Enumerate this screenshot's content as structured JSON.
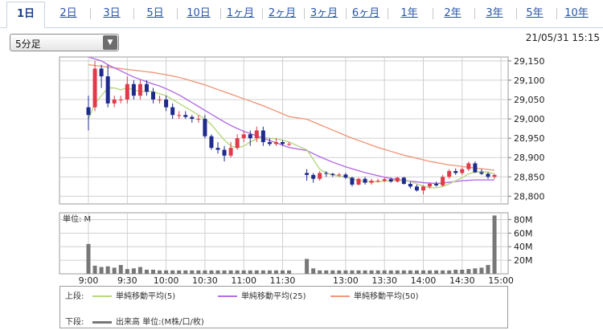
{
  "tabs": [
    {
      "label": "1日",
      "active": true
    },
    {
      "label": "2日"
    },
    {
      "label": "3日"
    },
    {
      "label": "5日"
    },
    {
      "label": "10日"
    },
    {
      "label": "1ヶ月"
    },
    {
      "label": "2ヶ月"
    },
    {
      "label": "3ヶ月"
    },
    {
      "label": "6ヶ月"
    },
    {
      "label": "1年"
    },
    {
      "label": "2年"
    },
    {
      "label": "3年"
    },
    {
      "label": "5年"
    },
    {
      "label": "10年"
    }
  ],
  "interval_select": {
    "value": "5分足"
  },
  "datetime": "21/05/31 15:15",
  "colors": {
    "up": "#e03a4a",
    "down": "#1e2a8c",
    "ma5": "#b8d77e",
    "ma25": "#b46ee6",
    "ma50": "#ef9a7c",
    "volume": "#777777",
    "grid": "#d0d0d0"
  },
  "chart_data": [
    {
      "type": "candlestick",
      "x_tick_labels": [
        "9:00",
        "9:30",
        "10:00",
        "10:30",
        "11:00",
        "11:30",
        "13:00",
        "13:30",
        "14:00",
        "14:30",
        "15:00"
      ],
      "y_tick_labels": [
        "29,150",
        "29,100",
        "29,050",
        "29,000",
        "28,950",
        "28,900",
        "28,850",
        "28,800"
      ],
      "ylim": [
        28780,
        29160
      ],
      "grid": true,
      "bars_per_hour": 12,
      "session_gap_after_bar": 31,
      "ohlc": [
        [
          29030,
          29060,
          28970,
          29010
        ],
        [
          29030,
          29150,
          29020,
          29130
        ],
        [
          29130,
          29140,
          29080,
          29110
        ],
        [
          29110,
          29140,
          29030,
          29040
        ],
        [
          29040,
          29060,
          29030,
          29050
        ],
        [
          29050,
          29060,
          29040,
          29050
        ],
        [
          29050,
          29110,
          29040,
          29090
        ],
        [
          29090,
          29100,
          29050,
          29060
        ],
        [
          29060,
          29100,
          29050,
          29090
        ],
        [
          29090,
          29100,
          29060,
          29070
        ],
        [
          29070,
          29080,
          29040,
          29050
        ],
        [
          29050,
          29060,
          29040,
          29050
        ],
        [
          29050,
          29060,
          29020,
          29030
        ],
        [
          29030,
          29040,
          29000,
          29010
        ],
        [
          29010,
          29020,
          29000,
          29010
        ],
        [
          29010,
          29020,
          29000,
          29005
        ],
        [
          29005,
          29010,
          28990,
          29000
        ],
        [
          29000,
          29010,
          28990,
          29000
        ],
        [
          29000,
          29010,
          28950,
          28955
        ],
        [
          28955,
          28960,
          28920,
          28925
        ],
        [
          28925,
          28940,
          28910,
          28920
        ],
        [
          28920,
          28930,
          28890,
          28905
        ],
        [
          28905,
          28940,
          28900,
          28925
        ],
        [
          28925,
          28960,
          28920,
          28950
        ],
        [
          28950,
          28970,
          28940,
          28960
        ],
        [
          28960,
          28970,
          28930,
          28950
        ],
        [
          28950,
          28980,
          28940,
          28970
        ],
        [
          28970,
          28980,
          28930,
          28940
        ],
        [
          28940,
          28950,
          28930,
          28935
        ],
        [
          28935,
          28950,
          28930,
          28940
        ],
        [
          28940,
          28945,
          28930,
          28935
        ],
        [
          28935,
          28940,
          28930,
          28935
        ],
        [
          28860,
          28870,
          28840,
          28855
        ],
        [
          28855,
          28860,
          28835,
          28845
        ],
        [
          28845,
          28865,
          28840,
          28860
        ],
        [
          28860,
          28865,
          28850,
          28858
        ],
        [
          28858,
          28860,
          28850,
          28855
        ],
        [
          28855,
          28860,
          28850,
          28856
        ],
        [
          28856,
          28860,
          28845,
          28848
        ],
        [
          28848,
          28850,
          28825,
          28830
        ],
        [
          28830,
          28848,
          28828,
          28845
        ],
        [
          28845,
          28850,
          28830,
          28835
        ],
        [
          28835,
          28845,
          28830,
          28840
        ],
        [
          28840,
          28845,
          28835,
          28840
        ],
        [
          28840,
          28848,
          28836,
          28844
        ],
        [
          28844,
          28848,
          28835,
          28838
        ],
        [
          28838,
          28850,
          28835,
          28848
        ],
        [
          28848,
          28850,
          28830,
          28832
        ],
        [
          28832,
          28838,
          28820,
          28825
        ],
        [
          28825,
          28830,
          28812,
          28815
        ],
        [
          28815,
          28828,
          28805,
          28825
        ],
        [
          28825,
          28835,
          28820,
          28832
        ],
        [
          28832,
          28838,
          28825,
          28828
        ],
        [
          28828,
          28855,
          28825,
          28850
        ],
        [
          28850,
          28870,
          28845,
          28865
        ],
        [
          28865,
          28872,
          28855,
          28860
        ],
        [
          28860,
          28875,
          28855,
          28870
        ],
        [
          28870,
          28890,
          28865,
          28885
        ],
        [
          28885,
          28890,
          28860,
          28862
        ],
        [
          28862,
          28870,
          28855,
          28858
        ],
        [
          28858,
          28862,
          28845,
          28850
        ],
        [
          28850,
          28858,
          28845,
          28855
        ]
      ],
      "ma5": [
        29000,
        29040,
        29060,
        29080,
        29080,
        29075,
        29080,
        29075,
        29070,
        29072,
        29070,
        29065,
        29060,
        29050,
        29040,
        29030,
        29020,
        29010,
        29000,
        28985,
        28965,
        28945,
        28930,
        28925,
        28930,
        28940,
        28948,
        28952,
        28950,
        28948,
        28945,
        28940,
        28920,
        28895,
        28870,
        28860,
        28855,
        28852,
        28850,
        28845,
        28840,
        28838,
        28837,
        28838,
        28839,
        28840,
        28841,
        28840,
        28838,
        28832,
        28826,
        28822,
        28822,
        28825,
        28832,
        28840,
        28848,
        28858,
        28862,
        28864,
        28862,
        28858
      ],
      "ma25": [
        29160,
        29155,
        29150,
        29140,
        29132,
        29124,
        29116,
        29108,
        29102,
        29096,
        29090,
        29085,
        29078,
        29070,
        29062,
        29052,
        29042,
        29032,
        29022,
        29012,
        29002,
        28992,
        28983,
        28975,
        28968,
        28962,
        28956,
        28950,
        28944,
        28938,
        28932,
        28926,
        28918,
        28910,
        28902,
        28895,
        28888,
        28882,
        28876,
        28871,
        28866,
        28861,
        28857,
        28853,
        28849,
        28846,
        28843,
        28841,
        28839,
        28837,
        28835,
        28834,
        28833,
        28834,
        28836,
        28838,
        28840,
        28841,
        28842,
        28842,
        28842,
        28842
      ],
      "ma50": [
        29140,
        29138,
        29136,
        29134,
        29132,
        29130,
        29128,
        29126,
        29124,
        29122,
        29120,
        29117,
        29114,
        29111,
        29107,
        29103,
        29098,
        29093,
        29088,
        29082,
        29076,
        29070,
        29064,
        29058,
        29052,
        29046,
        29040,
        29034,
        29027,
        29020,
        29013,
        29006,
        28999,
        28992,
        28985,
        28978,
        28971,
        28964,
        28957,
        28950,
        28944,
        28938,
        28932,
        28926,
        28921,
        28916,
        28911,
        28906,
        28902,
        28898,
        28894,
        28890,
        28887,
        28884,
        28881,
        28879,
        28877,
        28875,
        28873,
        28871,
        28869,
        28867
      ]
    },
    {
      "type": "bar",
      "title": "単位: M",
      "y_tick_labels": [
        "80M",
        "60M",
        "40M",
        "20M"
      ],
      "ylim": [
        0,
        90
      ],
      "volume_millions": [
        44,
        12,
        10,
        11,
        9,
        13,
        7,
        8,
        10,
        6,
        6,
        5,
        5,
        5,
        5,
        5,
        5,
        5,
        5,
        5,
        5,
        5,
        5,
        5,
        5,
        5,
        5,
        5,
        5,
        5,
        5,
        5,
        22,
        8,
        5,
        5,
        5,
        5,
        5,
        5,
        5,
        5,
        5,
        5,
        5,
        5,
        5,
        5,
        5,
        5,
        5,
        5,
        5,
        5,
        5,
        6,
        6,
        7,
        8,
        9,
        13,
        86
      ]
    }
  ],
  "legend": {
    "upper_label": "上段:",
    "lower_label": "下段:",
    "items": [
      {
        "label": "単純移動平均(5)",
        "color": "#b8d77e"
      },
      {
        "label": "単純移動平均(25)",
        "color": "#b46ee6"
      },
      {
        "label": "単純移動平均(50)",
        "color": "#ef9a7c"
      }
    ],
    "volume_label": "出来高 単位:(M株/口/枚)",
    "volume_color": "#777777"
  }
}
